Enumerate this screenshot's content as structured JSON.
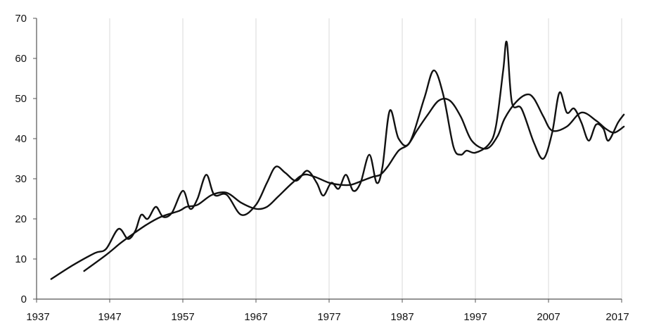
{
  "chart_data": {
    "type": "line",
    "title": "",
    "xlabel": "",
    "ylabel": "",
    "xlim": [
      1937,
      2017
    ],
    "ylim": [
      0,
      70
    ],
    "x_ticks": [
      1937,
      1947,
      1957,
      1967,
      1977,
      1987,
      1997,
      2007,
      2017
    ],
    "y_ticks": [
      0,
      10,
      20,
      30,
      40,
      50,
      60,
      70
    ],
    "grid": {
      "vertical": true,
      "horizontal": false
    },
    "legend": "none",
    "colors": {
      "line": "#111111",
      "grid": "#d9d9d9",
      "axis": "#555555"
    },
    "series": [
      {
        "points": [
          [
            1939,
            5
          ],
          [
            1942,
            8.5
          ],
          [
            1945,
            11.5
          ],
          [
            1946.5,
            12.5
          ],
          [
            1948.2,
            17.5
          ],
          [
            1949.5,
            15
          ],
          [
            1950.5,
            17
          ],
          [
            1951.3,
            21
          ],
          [
            1952.2,
            20
          ],
          [
            1953.3,
            23
          ],
          [
            1954.3,
            20.5
          ],
          [
            1955.5,
            21.5
          ],
          [
            1957,
            27
          ],
          [
            1958,
            22.5
          ],
          [
            1959,
            25
          ],
          [
            1960.2,
            31
          ],
          [
            1961.3,
            26
          ],
          [
            1963,
            26
          ],
          [
            1965,
            21
          ],
          [
            1967,
            23.5
          ],
          [
            1968.5,
            29
          ],
          [
            1969.7,
            33
          ],
          [
            1971,
            31.5
          ],
          [
            1972.5,
            29.5
          ],
          [
            1974,
            32
          ],
          [
            1975.3,
            29
          ],
          [
            1976.2,
            25.8
          ],
          [
            1977.3,
            29
          ],
          [
            1978.3,
            27.5
          ],
          [
            1979.3,
            31
          ],
          [
            1980.3,
            27
          ],
          [
            1981.3,
            29
          ],
          [
            1982.5,
            36
          ],
          [
            1983.5,
            29
          ],
          [
            1984.3,
            33
          ],
          [
            1985.3,
            47
          ],
          [
            1986.5,
            40
          ],
          [
            1988,
            39
          ],
          [
            1990,
            50
          ],
          [
            1991.3,
            57
          ],
          [
            1992.6,
            51
          ],
          [
            1994,
            38
          ],
          [
            1995,
            36
          ],
          [
            1995.8,
            37
          ],
          [
            1997,
            36.5
          ],
          [
            1998.8,
            38.5
          ],
          [
            1999.8,
            43
          ],
          [
            2000.8,
            57
          ],
          [
            2001.3,
            64
          ],
          [
            2002,
            49
          ],
          [
            2003.3,
            47.5
          ],
          [
            2005,
            39
          ],
          [
            2006.3,
            35
          ],
          [
            2007.5,
            41.5
          ],
          [
            2008.5,
            51.5
          ],
          [
            2009.5,
            46.5
          ],
          [
            2010.5,
            47.5
          ],
          [
            2011.5,
            44
          ],
          [
            2012.5,
            39.5
          ],
          [
            2013.5,
            43.5
          ],
          [
            2014.5,
            42.5
          ],
          [
            2015.2,
            39.5
          ],
          [
            2016.5,
            44
          ],
          [
            2017.3,
            46
          ]
        ]
      },
      {
        "points": [
          [
            1943.5,
            7
          ],
          [
            1946.5,
            11
          ],
          [
            1948.5,
            14
          ],
          [
            1950,
            16
          ],
          [
            1952,
            18.5
          ],
          [
            1954,
            20.5
          ],
          [
            1956.5,
            22
          ],
          [
            1957.5,
            23
          ],
          [
            1959,
            23.5
          ],
          [
            1961,
            26
          ],
          [
            1963,
            26.5
          ],
          [
            1965,
            24
          ],
          [
            1967,
            22.5
          ],
          [
            1968.5,
            23
          ],
          [
            1970,
            25.5
          ],
          [
            1972,
            29
          ],
          [
            1973.5,
            31
          ],
          [
            1975,
            30.5
          ],
          [
            1977,
            29
          ],
          [
            1978.5,
            28.5
          ],
          [
            1980,
            28.5
          ],
          [
            1981.5,
            29.5
          ],
          [
            1983,
            30.5
          ],
          [
            1984,
            31
          ],
          [
            1985,
            33
          ],
          [
            1986.5,
            37
          ],
          [
            1987.8,
            38.5
          ],
          [
            1989,
            42
          ],
          [
            1990.5,
            46
          ],
          [
            1992,
            49.5
          ],
          [
            1993.5,
            49.5
          ],
          [
            1995,
            45.5
          ],
          [
            1996.5,
            39.5
          ],
          [
            1998.5,
            37.5
          ],
          [
            2000,
            40.5
          ],
          [
            2001,
            45
          ],
          [
            2002.5,
            49
          ],
          [
            2004,
            51
          ],
          [
            2005,
            50
          ],
          [
            2006.3,
            45.5
          ],
          [
            2007.5,
            42
          ],
          [
            2009.5,
            43
          ],
          [
            2011.5,
            46.5
          ],
          [
            2013.5,
            44.5
          ],
          [
            2014.8,
            42.5
          ],
          [
            2016,
            41.5
          ],
          [
            2017.3,
            43
          ]
        ]
      }
    ]
  }
}
